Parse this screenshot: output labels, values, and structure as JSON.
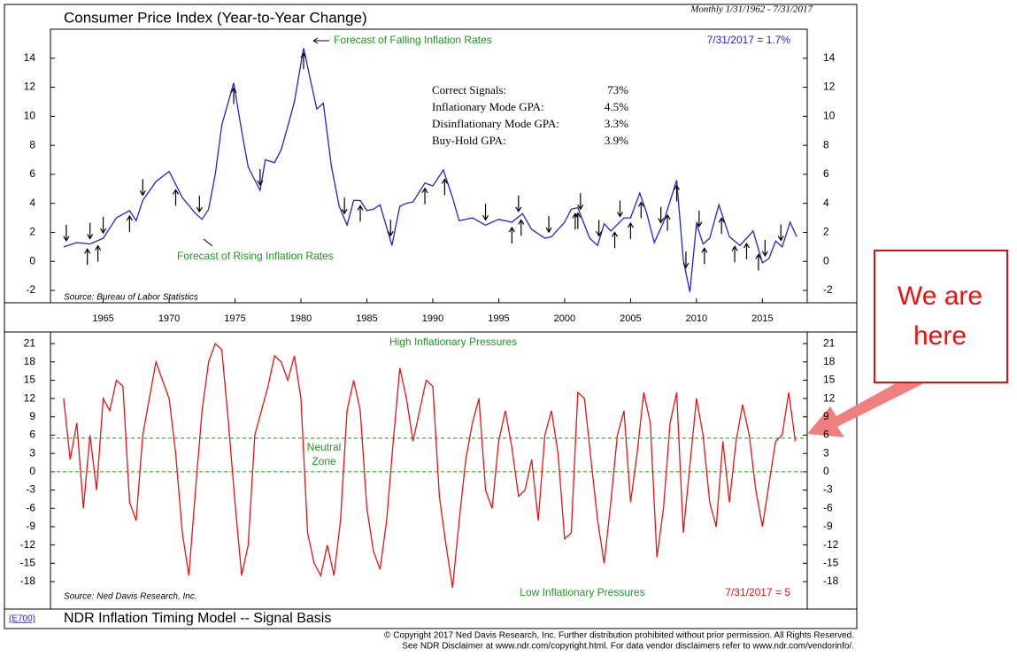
{
  "chart_data": [
    {
      "type": "line",
      "title": "Consumer Price Index (Year-to-Year Change)",
      "subtitle": "Monthly 1/31/1962 - 7/31/2017",
      "source": "Source: Bureau of Labor Statistics",
      "last_label": "7/31/2017 = 1.7%",
      "annotations": [
        "Forecast of Falling Inflation Rates",
        "Forecast of Rising Inflation Rates"
      ],
      "stats": [
        {
          "label": "Correct Signals:",
          "value": "73%"
        },
        {
          "label": "Inflationary Mode GPA:",
          "value": "4.5%"
        },
        {
          "label": "Disinflationary Mode GPA:",
          "value": "3.3%"
        },
        {
          "label": "Buy-Hold GPA:",
          "value": "3.9%"
        }
      ],
      "color": "#2222dd",
      "x": [
        1962,
        1963,
        1964,
        1965,
        1966,
        1967,
        1967.5,
        1968,
        1969,
        1970,
        1971,
        1972,
        1972.5,
        1973,
        1973.5,
        1974,
        1974.9,
        1975.5,
        1976,
        1976.9,
        1977.3,
        1978,
        1978.5,
        1979,
        1979.5,
        1980.2,
        1980.7,
        1981.2,
        1981.7,
        1982.3,
        1982.9,
        1983.5,
        1984,
        1984.5,
        1985,
        1985.5,
        1986,
        1986.9,
        1987.5,
        1988,
        1988.5,
        1989.4,
        1990,
        1990.8,
        1991.5,
        1992,
        1993,
        1994,
        1995,
        1996,
        1996.8,
        1997.5,
        1998.5,
        1999,
        2000,
        2000.5,
        2001,
        2001.9,
        2002.5,
        2003,
        2003.5,
        2004.5,
        2005,
        2005.7,
        2006.2,
        2006.8,
        2007.5,
        2008.5,
        2009,
        2009.5,
        2010,
        2010.5,
        2011,
        2011.7,
        2012.5,
        2013.3,
        2014.3,
        2015,
        2015.5,
        2016,
        2016.5,
        2017.1,
        2017.6
      ],
      "values": [
        1.0,
        1.3,
        1.2,
        1.6,
        3.0,
        3.5,
        2.8,
        4.2,
        5.5,
        6.2,
        4.4,
        3.3,
        2.9,
        3.6,
        6.0,
        9.4,
        12.3,
        9.0,
        6.5,
        4.9,
        7.0,
        6.8,
        7.7,
        9.3,
        11.0,
        14.7,
        12.6,
        10.5,
        10.9,
        6.6,
        3.8,
        2.5,
        4.2,
        4.2,
        3.5,
        3.6,
        3.9,
        1.1,
        3.8,
        4.0,
        4.1,
        5.4,
        5.2,
        6.3,
        4.4,
        2.8,
        3.0,
        2.5,
        2.9,
        2.7,
        3.3,
        2.2,
        1.6,
        1.7,
        2.7,
        3.6,
        3.7,
        1.6,
        1.1,
        2.6,
        2.1,
        3.0,
        3.0,
        4.7,
        3.4,
        1.3,
        2.7,
        5.6,
        0.1,
        -2.1,
        2.6,
        1.2,
        1.6,
        3.9,
        1.7,
        1.1,
        2.1,
        -0.1,
        0.2,
        1.4,
        1.0,
        2.7,
        1.7
      ],
      "down_arrows": [
        1963.8,
        1964.6,
        1967,
        1970.5,
        1974.9,
        1980.2,
        1984.5,
        1989.4,
        1990.9,
        1996,
        1996.7,
        2000.8,
        2001,
        2003.8,
        2005,
        2005.8,
        2007.8,
        2008.5,
        2010.6,
        2011.9,
        2012.9,
        2013.8,
        2014.7
      ],
      "up_arrows": [
        1962.2,
        1964,
        1965,
        1968,
        1972.3,
        1976.9,
        1983.3,
        1986.8,
        1994,
        1996.5,
        1998.8,
        2001.2,
        2002.6,
        2004.2,
        2007.3,
        2009.2,
        2010.2,
        2015.2,
        2016.4
      ],
      "xlim": [
        1961,
        2018.4
      ],
      "xticks": [
        1965,
        1970,
        1975,
        1980,
        1985,
        1990,
        1995,
        2000,
        2005,
        2010,
        2015
      ],
      "ylim": [
        -2.85,
        16
      ],
      "yticks": [
        -2,
        0,
        2,
        4,
        6,
        8,
        10,
        12,
        14
      ]
    },
    {
      "type": "line",
      "title": "NDR Inflation Timing Model -- Signal Basis",
      "code": "(E700)",
      "source": "Source: Ned Davis Research, Inc.",
      "last_label": "7/31/2017 = 5",
      "annotations": [
        "High Inflationary Pressures",
        "Neutral",
        "Zone",
        "Low Inflationary Pressures"
      ],
      "reference_lines": [
        5.5,
        0
      ],
      "color": "#ee1111",
      "x": [
        1962,
        1962.5,
        1963,
        1963.5,
        1964,
        1964.5,
        1965,
        1965.5,
        1966,
        1966.5,
        1967,
        1967.5,
        1968,
        1968.5,
        1969,
        1969.5,
        1970,
        1970.5,
        1971,
        1971.5,
        1972,
        1972.5,
        1973,
        1973.5,
        1974,
        1974.5,
        1975,
        1975.5,
        1976,
        1976.5,
        1977,
        1977.5,
        1978,
        1978.5,
        1979,
        1979.5,
        1980,
        1980.5,
        1981,
        1981.5,
        1982,
        1982.5,
        1983,
        1983.5,
        1984,
        1984.5,
        1985,
        1985.5,
        1986,
        1986.5,
        1987,
        1987.5,
        1988,
        1988.5,
        1989,
        1989.5,
        1990,
        1990.5,
        1991,
        1991.5,
        1992,
        1992.5,
        1993,
        1993.5,
        1994,
        1994.5,
        1995,
        1995.5,
        1996,
        1996.5,
        1997,
        1997.5,
        1998,
        1998.5,
        1999,
        1999.5,
        2000,
        2000.5,
        2001,
        2001.5,
        2002,
        2002.5,
        2003,
        2003.5,
        2004,
        2004.5,
        2005,
        2005.5,
        2006,
        2006.5,
        2007,
        2007.5,
        2008,
        2008.5,
        2009,
        2009.5,
        2010,
        2010.5,
        2011,
        2011.5,
        2012,
        2012.5,
        2013,
        2013.5,
        2014,
        2014.5,
        2015,
        2015.5,
        2016,
        2016.5,
        2017,
        2017.5
      ],
      "values": [
        12,
        2,
        8,
        -6,
        6,
        -3,
        12,
        10,
        15,
        14,
        -5,
        -8,
        6,
        12,
        18,
        15,
        12,
        3,
        -10,
        -17,
        -3,
        10,
        18,
        21,
        20,
        8,
        -5,
        -17,
        -12,
        6,
        10,
        14,
        19,
        18,
        15,
        19,
        12,
        -10,
        -15,
        -17,
        -12,
        -17,
        -8,
        10,
        15,
        10,
        -6,
        -13,
        -16,
        -8,
        5,
        17,
        12,
        5,
        10,
        15,
        14,
        -4,
        -12,
        -19,
        -8,
        2,
        8,
        12,
        -3,
        -6,
        5,
        10,
        4,
        -4,
        -3,
        2,
        -8,
        6,
        10,
        3,
        -11,
        -10,
        13,
        12,
        2,
        -8,
        -15,
        -5,
        6,
        10,
        -5,
        3,
        13,
        8,
        -14,
        -6,
        8,
        13,
        -10,
        1,
        12,
        6,
        -5,
        -9,
        5,
        -5,
        5,
        11,
        6,
        -3,
        -9,
        -2,
        5,
        6,
        13,
        5
      ],
      "xlim": [
        1961,
        2018.4
      ],
      "ylim": [
        -22.5,
        22.9
      ],
      "yticks": [
        -18,
        -15,
        -12,
        -9,
        -6,
        -3,
        0,
        3,
        6,
        9,
        12,
        15,
        18,
        21
      ]
    }
  ],
  "footer": [
    "© Copyright 2017 Ned Davis Research, Inc.  Further distribution prohibited without prior permission.  All Rights Reserved.",
    "See NDR Disclaimer at www.ndr.com/copyright.html.  For data vendor disclaimers refer to www.ndr.com/vendorinfo/."
  ],
  "callout": [
    "We are",
    "here"
  ]
}
